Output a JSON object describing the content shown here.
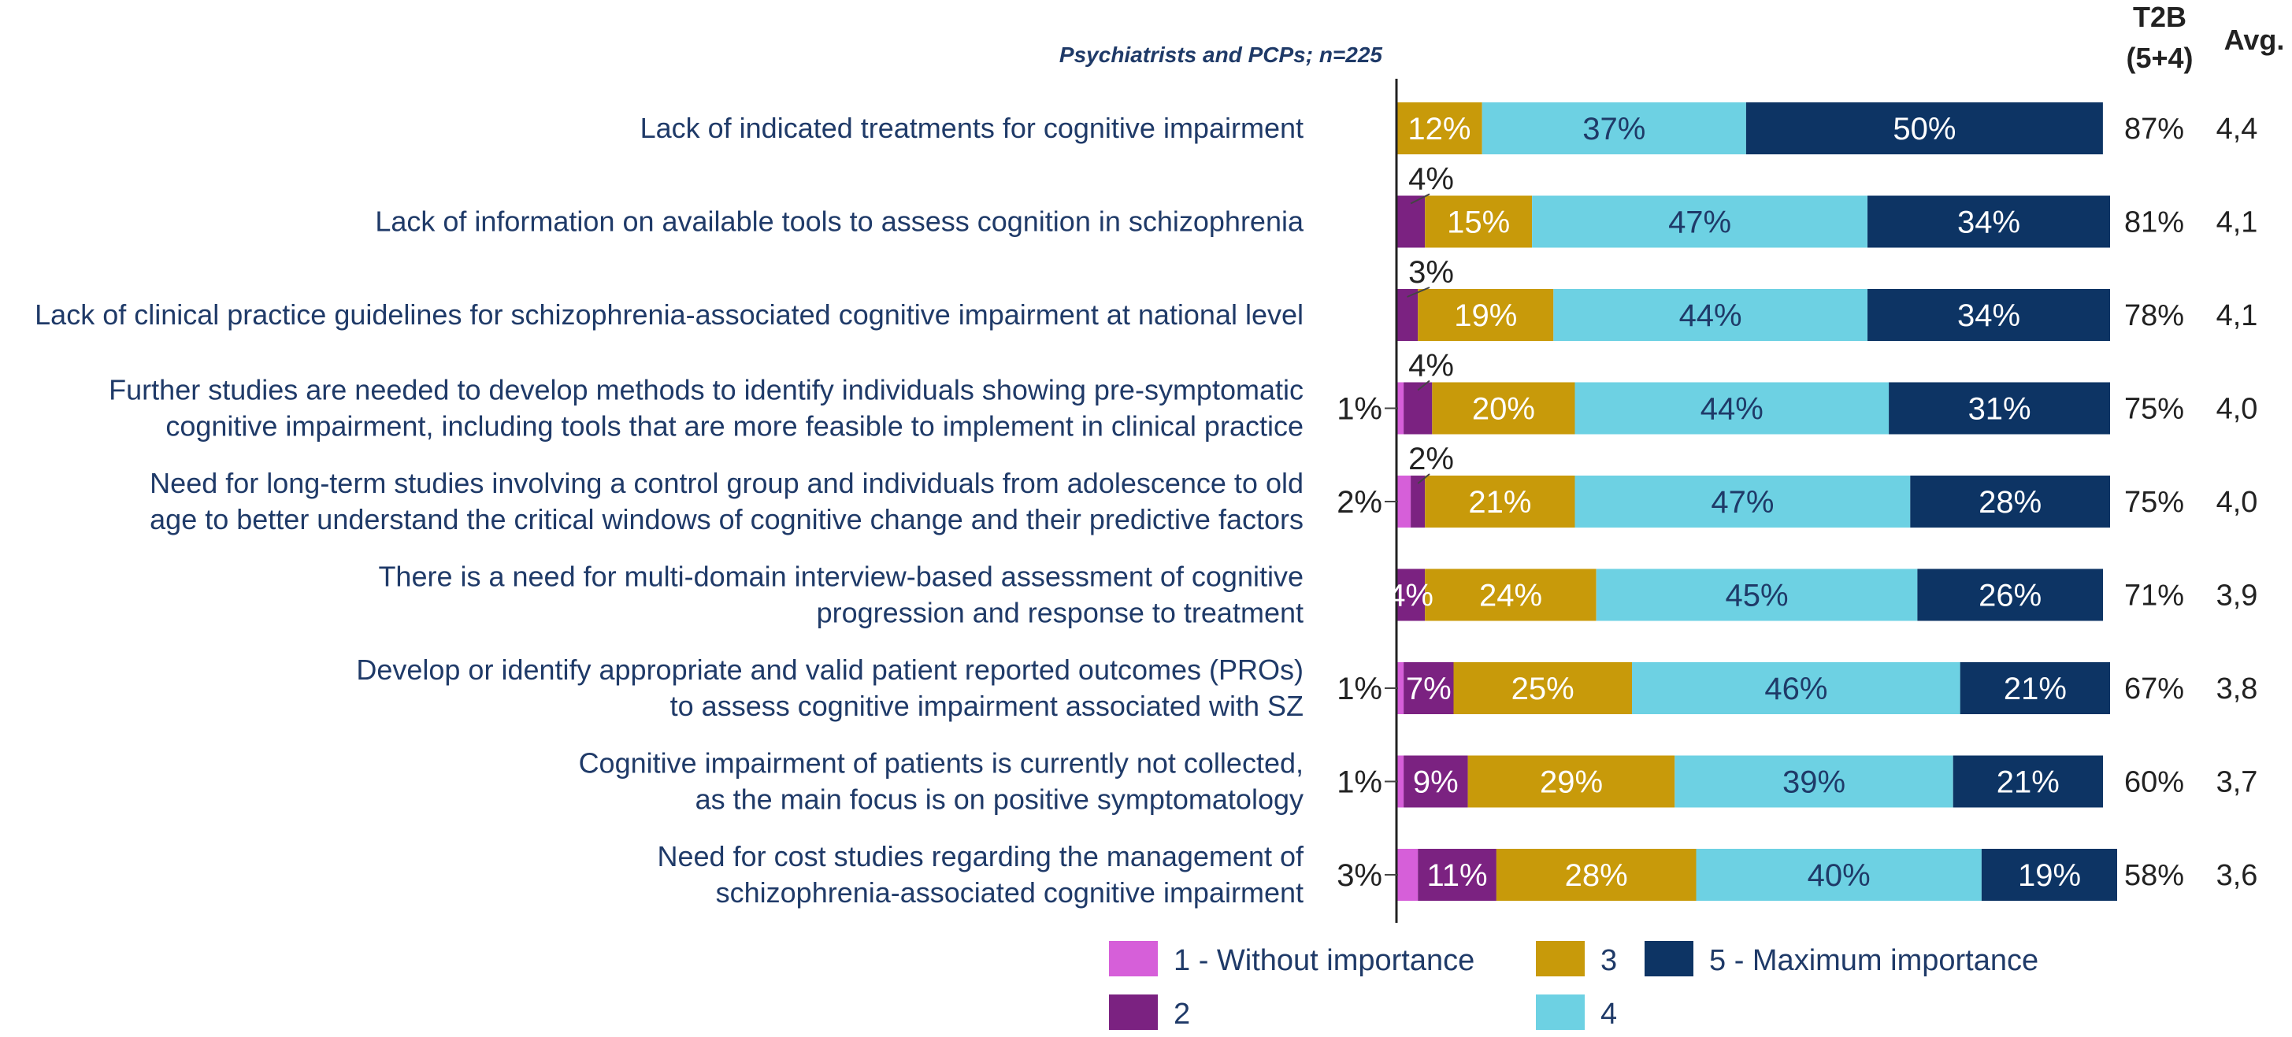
{
  "chart_data": {
    "type": "bar",
    "orientation": "horizontal",
    "stacked": true,
    "subtitle": "Psychiatrists and PCPs; n=225",
    "xlim": [
      0,
      100
    ],
    "categories": [
      [
        "Lack of indicated treatments for cognitive impairment"
      ],
      [
        "Lack of information on available tools to assess cognition in schizophrenia"
      ],
      [
        "Lack of clinical practice guidelines for schizophrenia-associated cognitive impairment at national level"
      ],
      [
        "Further studies are needed to develop methods to identify individuals showing pre-symptomatic",
        "cognitive impairment, including tools that are more feasible to implement in clinical practice"
      ],
      [
        "Need for long-term studies involving a control group and individuals from adolescence to old",
        "age to better understand the critical windows of cognitive change and their predictive factors"
      ],
      [
        "There is a need for multi-domain interview-based assessment of cognitive",
        "progression and response to treatment"
      ],
      [
        "Develop or identify appropriate and valid patient reported outcomes (PROs)",
        "to assess cognitive impairment associated with SZ"
      ],
      [
        "Cognitive impairment of patients is currently not collected,",
        "as the main focus is on positive symptomatology"
      ],
      [
        "Need for cost studies regarding the management of",
        "schizophrenia-associated cognitive impairment"
      ]
    ],
    "series": [
      {
        "name": "1 - Without importance",
        "color": "#d65fd9",
        "values": [
          0,
          0,
          0,
          1,
          2,
          0,
          1,
          1,
          3
        ],
        "labels": [
          "",
          "",
          "",
          "1%",
          "2%",
          "",
          "1%",
          "1%",
          "3%"
        ]
      },
      {
        "name": "2",
        "color": "#7b2281",
        "values": [
          0,
          4,
          3,
          4,
          2,
          4,
          7,
          9,
          11
        ],
        "labels": [
          "",
          "4%",
          "3%",
          "4%",
          "2%",
          "4%",
          "7%",
          "9%",
          "11%"
        ]
      },
      {
        "name": "3",
        "color": "#c89a0a",
        "values": [
          12,
          15,
          19,
          20,
          21,
          24,
          25,
          29,
          28
        ],
        "labels": [
          "12%",
          "15%",
          "19%",
          "20%",
          "21%",
          "24%",
          "25%",
          "29%",
          "28%"
        ]
      },
      {
        "name": "4",
        "color": "#6dd1e3",
        "values": [
          37,
          47,
          44,
          44,
          47,
          45,
          46,
          39,
          40
        ],
        "labels": [
          "37%",
          "47%",
          "44%",
          "44%",
          "47%",
          "45%",
          "46%",
          "39%",
          "40%"
        ]
      },
      {
        "name": "5 - Maximum importance",
        "color": "#0d3464",
        "values": [
          50,
          34,
          34,
          31,
          28,
          26,
          21,
          21,
          19
        ],
        "labels": [
          "50%",
          "34%",
          "34%",
          "31%",
          "28%",
          "26%",
          "21%",
          "21%",
          "19%"
        ]
      }
    ],
    "right_columns": {
      "t2b_header": [
        "T2B",
        "(5+4)"
      ],
      "avg_header": "Avg.",
      "t2b": [
        "87%",
        "81%",
        "78%",
        "75%",
        "75%",
        "71%",
        "67%",
        "60%",
        "58%"
      ],
      "avg": [
        "4,4",
        "4,1",
        "4,1",
        "4,0",
        "4,0",
        "3,9",
        "3,8",
        "3,7",
        "3,6"
      ]
    },
    "legend": {
      "position": "bottom",
      "items": [
        "1 - Without importance",
        "3",
        "5 - Maximum importance",
        "2",
        "4"
      ]
    }
  }
}
